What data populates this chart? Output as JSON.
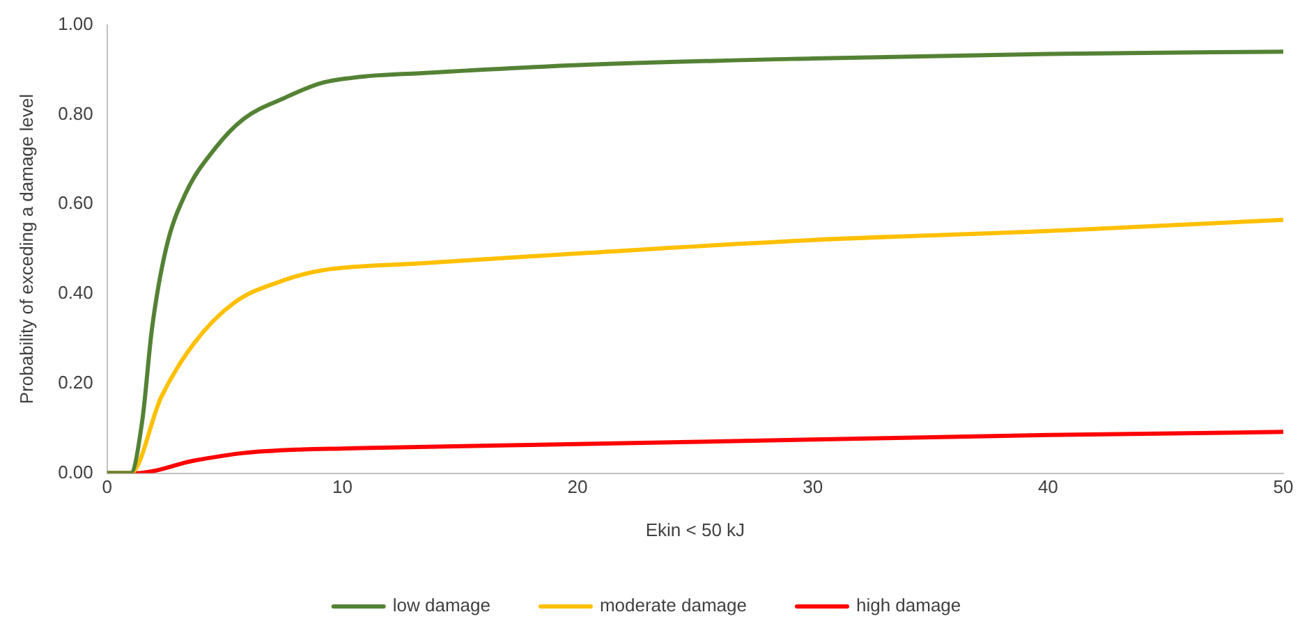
{
  "chart_data": {
    "type": "line",
    "xlabel": "Ekin < 50 kJ",
    "ylabel": "Probability of exceding a damage level",
    "xlim": [
      0,
      50
    ],
    "xticks": [
      0,
      10,
      20,
      30,
      40,
      50
    ],
    "ylim": [
      0,
      1
    ],
    "yticks": [
      {
        "value": 0,
        "label": "0.00"
      },
      {
        "value": 0.2,
        "label": "0.20"
      },
      {
        "value": 0.4,
        "label": "0.40"
      },
      {
        "value": 0.6,
        "label": "0.60"
      },
      {
        "value": 0.8,
        "label": "0.80"
      },
      {
        "value": 1,
        "label": "1.00"
      }
    ],
    "grid": false,
    "legend": "bottom",
    "marker": "none",
    "line_style": "solid",
    "series": [
      {
        "name": "low damage",
        "color": "#548235",
        "x": [
          0,
          1,
          1.5,
          1.9,
          2.5,
          3.3,
          4.6,
          5.8,
          7.5,
          9.1,
          10.8,
          13.3,
          20,
          30,
          40,
          50
        ],
        "values": [
          0,
          0,
          0.12,
          0.32,
          0.5,
          0.62,
          0.725,
          0.79,
          0.836,
          0.87,
          0.884,
          0.892,
          0.91,
          0.925,
          0.935,
          0.94
        ]
      },
      {
        "name": "moderate damage",
        "color": "#ffc000",
        "x": [
          0,
          1,
          2.3,
          3.7,
          5.4,
          7.5,
          9.1,
          13.3,
          20,
          30,
          40,
          50
        ],
        "values": [
          0,
          0,
          0.17,
          0.29,
          0.38,
          0.43,
          0.452,
          0.468,
          0.49,
          0.52,
          0.54,
          0.565
        ]
      },
      {
        "name": "high damage",
        "color": "#ff0000",
        "x": [
          0,
          1.2,
          3.7,
          5.8,
          8.3,
          10,
          20,
          30,
          40,
          50
        ],
        "values": [
          0,
          0,
          0.028,
          0.045,
          0.053,
          0.055,
          0.065,
          0.075,
          0.085,
          0.092
        ]
      }
    ]
  }
}
